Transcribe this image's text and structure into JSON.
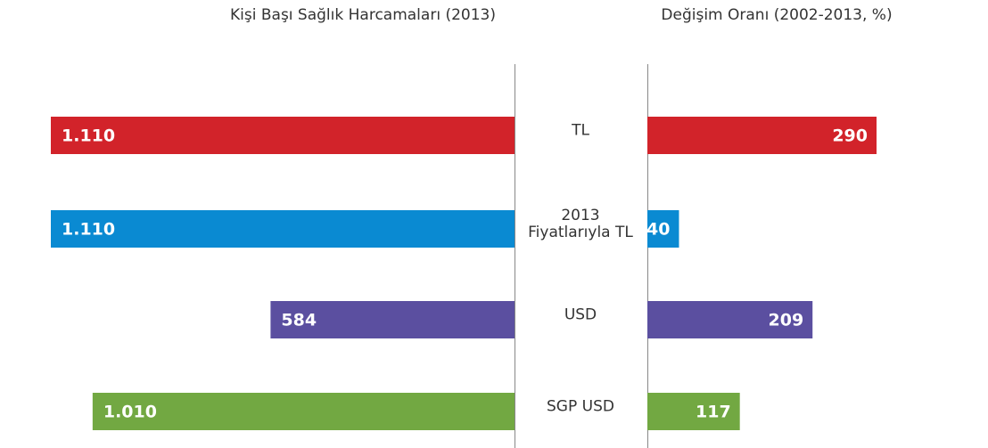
{
  "chart_data": [
    {
      "type": "bar",
      "orientation": "horizontal",
      "direction": "left",
      "title": "Kişi Başı Sağlık Harcamaları (2013)",
      "categories": [
        "TL",
        "2013 Fiyatlarıyla TL",
        "USD",
        "SGP USD"
      ],
      "values": [
        1110,
        1110,
        584,
        1010
      ],
      "value_labels": [
        "1.110",
        "1.110",
        "584",
        "1.010"
      ],
      "colors": [
        "#d2232a",
        "#0a8ad2",
        "#5b4fa0",
        "#72a842"
      ]
    },
    {
      "type": "bar",
      "orientation": "horizontal",
      "direction": "right",
      "title": "Değişim Oranı (2002-2013, %)",
      "values": [
        290,
        40,
        209,
        117
      ],
      "colors": [
        "#d2232a",
        "#0a8ad2",
        "#5b4fa0",
        "#72a842"
      ]
    }
  ]
}
